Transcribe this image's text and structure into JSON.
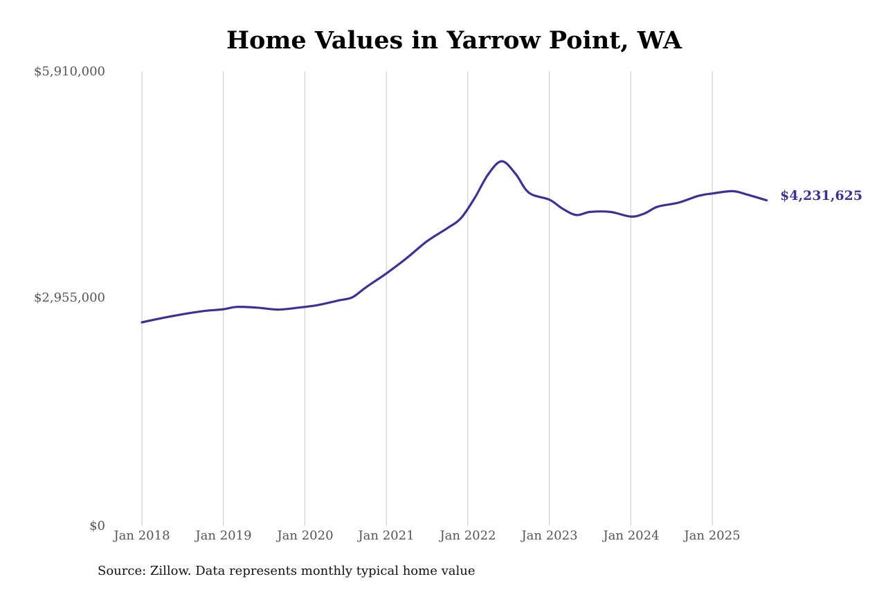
{
  "title": "Home Values in Yarrow Point, WA",
  "source": "Source: Zillow. Data represents monthly typical home value",
  "colors": {
    "line": "#3b3196",
    "grid": "#c8c8c8",
    "axis_text": "#555555"
  },
  "end_label": "$4,231,625",
  "y_axis": {
    "ticks": [
      {
        "value": 5910000,
        "label": "$5,910,000"
      },
      {
        "value": 2955000,
        "label": "$2,955,000"
      },
      {
        "value": 0,
        "label": "$0"
      }
    ]
  },
  "x_axis": {
    "ticks": [
      "Jan 2018",
      "Jan 2019",
      "Jan 2020",
      "Jan 2021",
      "Jan 2022",
      "Jan 2023",
      "Jan 2024",
      "Jan 2025"
    ]
  },
  "chart_data": {
    "type": "line",
    "title": "Home Values in Yarrow Point, WA",
    "xlabel": "",
    "ylabel": "",
    "ylim": [
      0,
      5910000
    ],
    "grid": "vertical",
    "legend": "none",
    "annotations": [
      "$4,231,625"
    ],
    "series": [
      {
        "name": "Typical home value",
        "x": [
          "2018-01",
          "2018-04",
          "2018-07",
          "2018-10",
          "2019-01",
          "2019-03",
          "2019-06",
          "2019-09",
          "2019-12",
          "2020-03",
          "2020-06",
          "2020-08",
          "2020-10",
          "2021-01",
          "2021-04",
          "2021-07",
          "2021-10",
          "2021-12",
          "2022-02",
          "2022-04",
          "2022-06",
          "2022-08",
          "2022-10",
          "2023-01",
          "2023-03",
          "2023-05",
          "2023-07",
          "2023-10",
          "2024-01",
          "2024-03",
          "2024-05",
          "2024-08",
          "2024-11",
          "2025-01",
          "2025-04",
          "2025-06",
          "2025-09"
        ],
        "values": [
          2645000,
          2700000,
          2750000,
          2790000,
          2815000,
          2845000,
          2835000,
          2810000,
          2835000,
          2870000,
          2930000,
          2970000,
          3100000,
          3280000,
          3480000,
          3700000,
          3870000,
          4000000,
          4260000,
          4570000,
          4740000,
          4580000,
          4330000,
          4240000,
          4120000,
          4040000,
          4080000,
          4080000,
          4020000,
          4060000,
          4150000,
          4200000,
          4290000,
          4320000,
          4350000,
          4310000,
          4231625
        ]
      }
    ]
  }
}
